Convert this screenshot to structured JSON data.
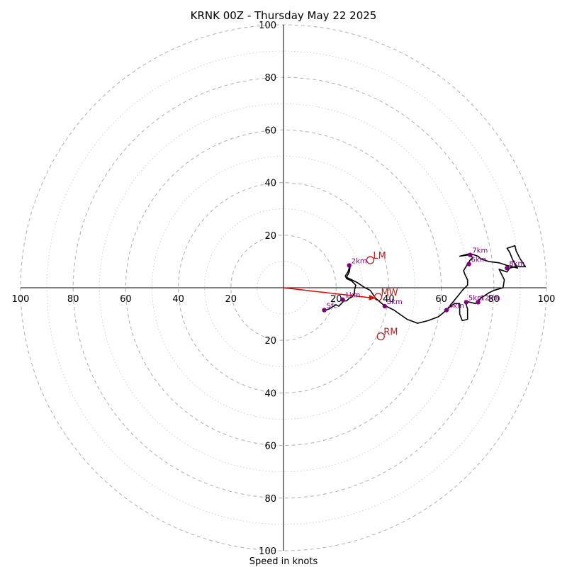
{
  "chart_data": {
    "type": "hodograph",
    "title": "KRNK 00Z - Thursday May 22 2025",
    "xlabel": "Speed in knots",
    "axis_range": [
      -100,
      100
    ],
    "ring_step": 10,
    "major_tick_labels": [
      "100",
      "80",
      "60",
      "40",
      "20",
      "20",
      "40",
      "60",
      "80",
      "100"
    ],
    "x_tick_values": [
      -100,
      -80,
      -60,
      -40,
      -20,
      20,
      40,
      60,
      80,
      100
    ],
    "y_tick_labels": [
      "100",
      "80",
      "60",
      "40",
      "20",
      "20",
      "40",
      "60",
      "80",
      "100"
    ],
    "y_tick_values": [
      100,
      80,
      60,
      40,
      20,
      -20,
      -40,
      -60,
      -80,
      -100
    ],
    "trace_color": "#000000",
    "trace": [
      [
        16,
        -8.5
      ],
      [
        17.5,
        -8
      ],
      [
        19,
        -7
      ],
      [
        20,
        -6.5
      ],
      [
        21,
        -7
      ],
      [
        22,
        -6
      ],
      [
        23,
        -5
      ],
      [
        24,
        -5
      ],
      [
        25,
        -4
      ],
      [
        26,
        -3.5
      ],
      [
        27,
        -2
      ],
      [
        27,
        -1
      ],
      [
        27.5,
        1
      ],
      [
        26,
        2.5
      ],
      [
        24,
        3.5
      ],
      [
        23.5,
        4.5
      ],
      [
        24.5,
        6
      ],
      [
        25.5,
        9
      ],
      [
        25,
        6
      ],
      [
        24,
        4
      ],
      [
        26,
        3
      ],
      [
        28,
        2
      ],
      [
        31,
        0
      ],
      [
        33,
        -1
      ],
      [
        35,
        -4
      ],
      [
        38,
        -6.5
      ],
      [
        42,
        -8.5
      ],
      [
        47,
        -12
      ],
      [
        51,
        -13.5
      ],
      [
        55,
        -12.5
      ],
      [
        59,
        -11
      ],
      [
        62,
        -8.5
      ],
      [
        64,
        -6
      ],
      [
        66,
        -3.5
      ],
      [
        68,
        -1
      ],
      [
        70,
        1
      ],
      [
        70,
        3
      ],
      [
        69,
        5
      ],
      [
        68.5,
        6.5
      ],
      [
        70,
        9
      ],
      [
        71,
        10.5
      ],
      [
        72,
        11.5
      ],
      [
        70.5,
        12.5
      ],
      [
        67,
        12
      ],
      [
        71,
        13
      ],
      [
        74,
        12
      ],
      [
        75,
        11
      ],
      [
        78,
        10
      ],
      [
        82,
        9.5
      ],
      [
        85,
        8.5
      ],
      [
        87,
        8
      ],
      [
        89,
        7.5
      ],
      [
        88,
        9
      ],
      [
        87,
        11
      ],
      [
        86,
        13.5
      ],
      [
        85,
        15
      ],
      [
        88,
        16
      ],
      [
        88.5,
        14
      ],
      [
        90,
        11
      ],
      [
        92,
        8
      ],
      [
        88,
        8
      ],
      [
        86,
        7.5
      ],
      [
        85,
        6
      ],
      [
        82,
        7
      ],
      [
        83,
        5
      ],
      [
        84,
        3
      ],
      [
        83.5,
        0
      ],
      [
        80,
        -1
      ],
      [
        78,
        -2
      ],
      [
        75,
        -4
      ],
      [
        73,
        -6
      ],
      [
        69,
        -5
      ],
      [
        70,
        -8
      ],
      [
        70,
        -12
      ],
      [
        68,
        -12.5
      ],
      [
        67,
        -10
      ],
      [
        67,
        -6
      ],
      [
        65,
        -6
      ],
      [
        63,
        -7.5
      ],
      [
        62,
        -8.5
      ]
    ],
    "height_markers": [
      {
        "label": "Sfc",
        "u": 15.5,
        "v": -8.5
      },
      {
        "label": "1km",
        "u": 22.5,
        "v": -4.5
      },
      {
        "label": "2km",
        "u": 25,
        "v": 8.5
      },
      {
        "label": "3km",
        "u": 38.5,
        "v": -7
      },
      {
        "label": "4km",
        "u": 62,
        "v": -8.5
      },
      {
        "label": "5km",
        "u": 69.5,
        "v": -5.5
      },
      {
        "label": "6km",
        "u": 70.5,
        "v": 9
      },
      {
        "label": "7km",
        "u": 71,
        "v": 12.5
      },
      {
        "label": "8km",
        "u": 85,
        "v": 7.5
      },
      {
        "label": "12km",
        "u": 74,
        "v": -5.5
      }
    ],
    "storm_motion": [
      {
        "label": "LM",
        "u": 33,
        "v": 10.5
      },
      {
        "label": "MW",
        "u": 36,
        "v": -3.5
      },
      {
        "label": "RM",
        "u": 37,
        "v": -18.5
      }
    ],
    "shear_vector": {
      "u": 35,
      "v": -4,
      "color": "#ee0000"
    },
    "colors": {
      "height_marker": "#800080",
      "storm_motion": "#b22222",
      "ring_major": "#bbbbbb",
      "ring_minor": "#d0d0d0"
    }
  }
}
